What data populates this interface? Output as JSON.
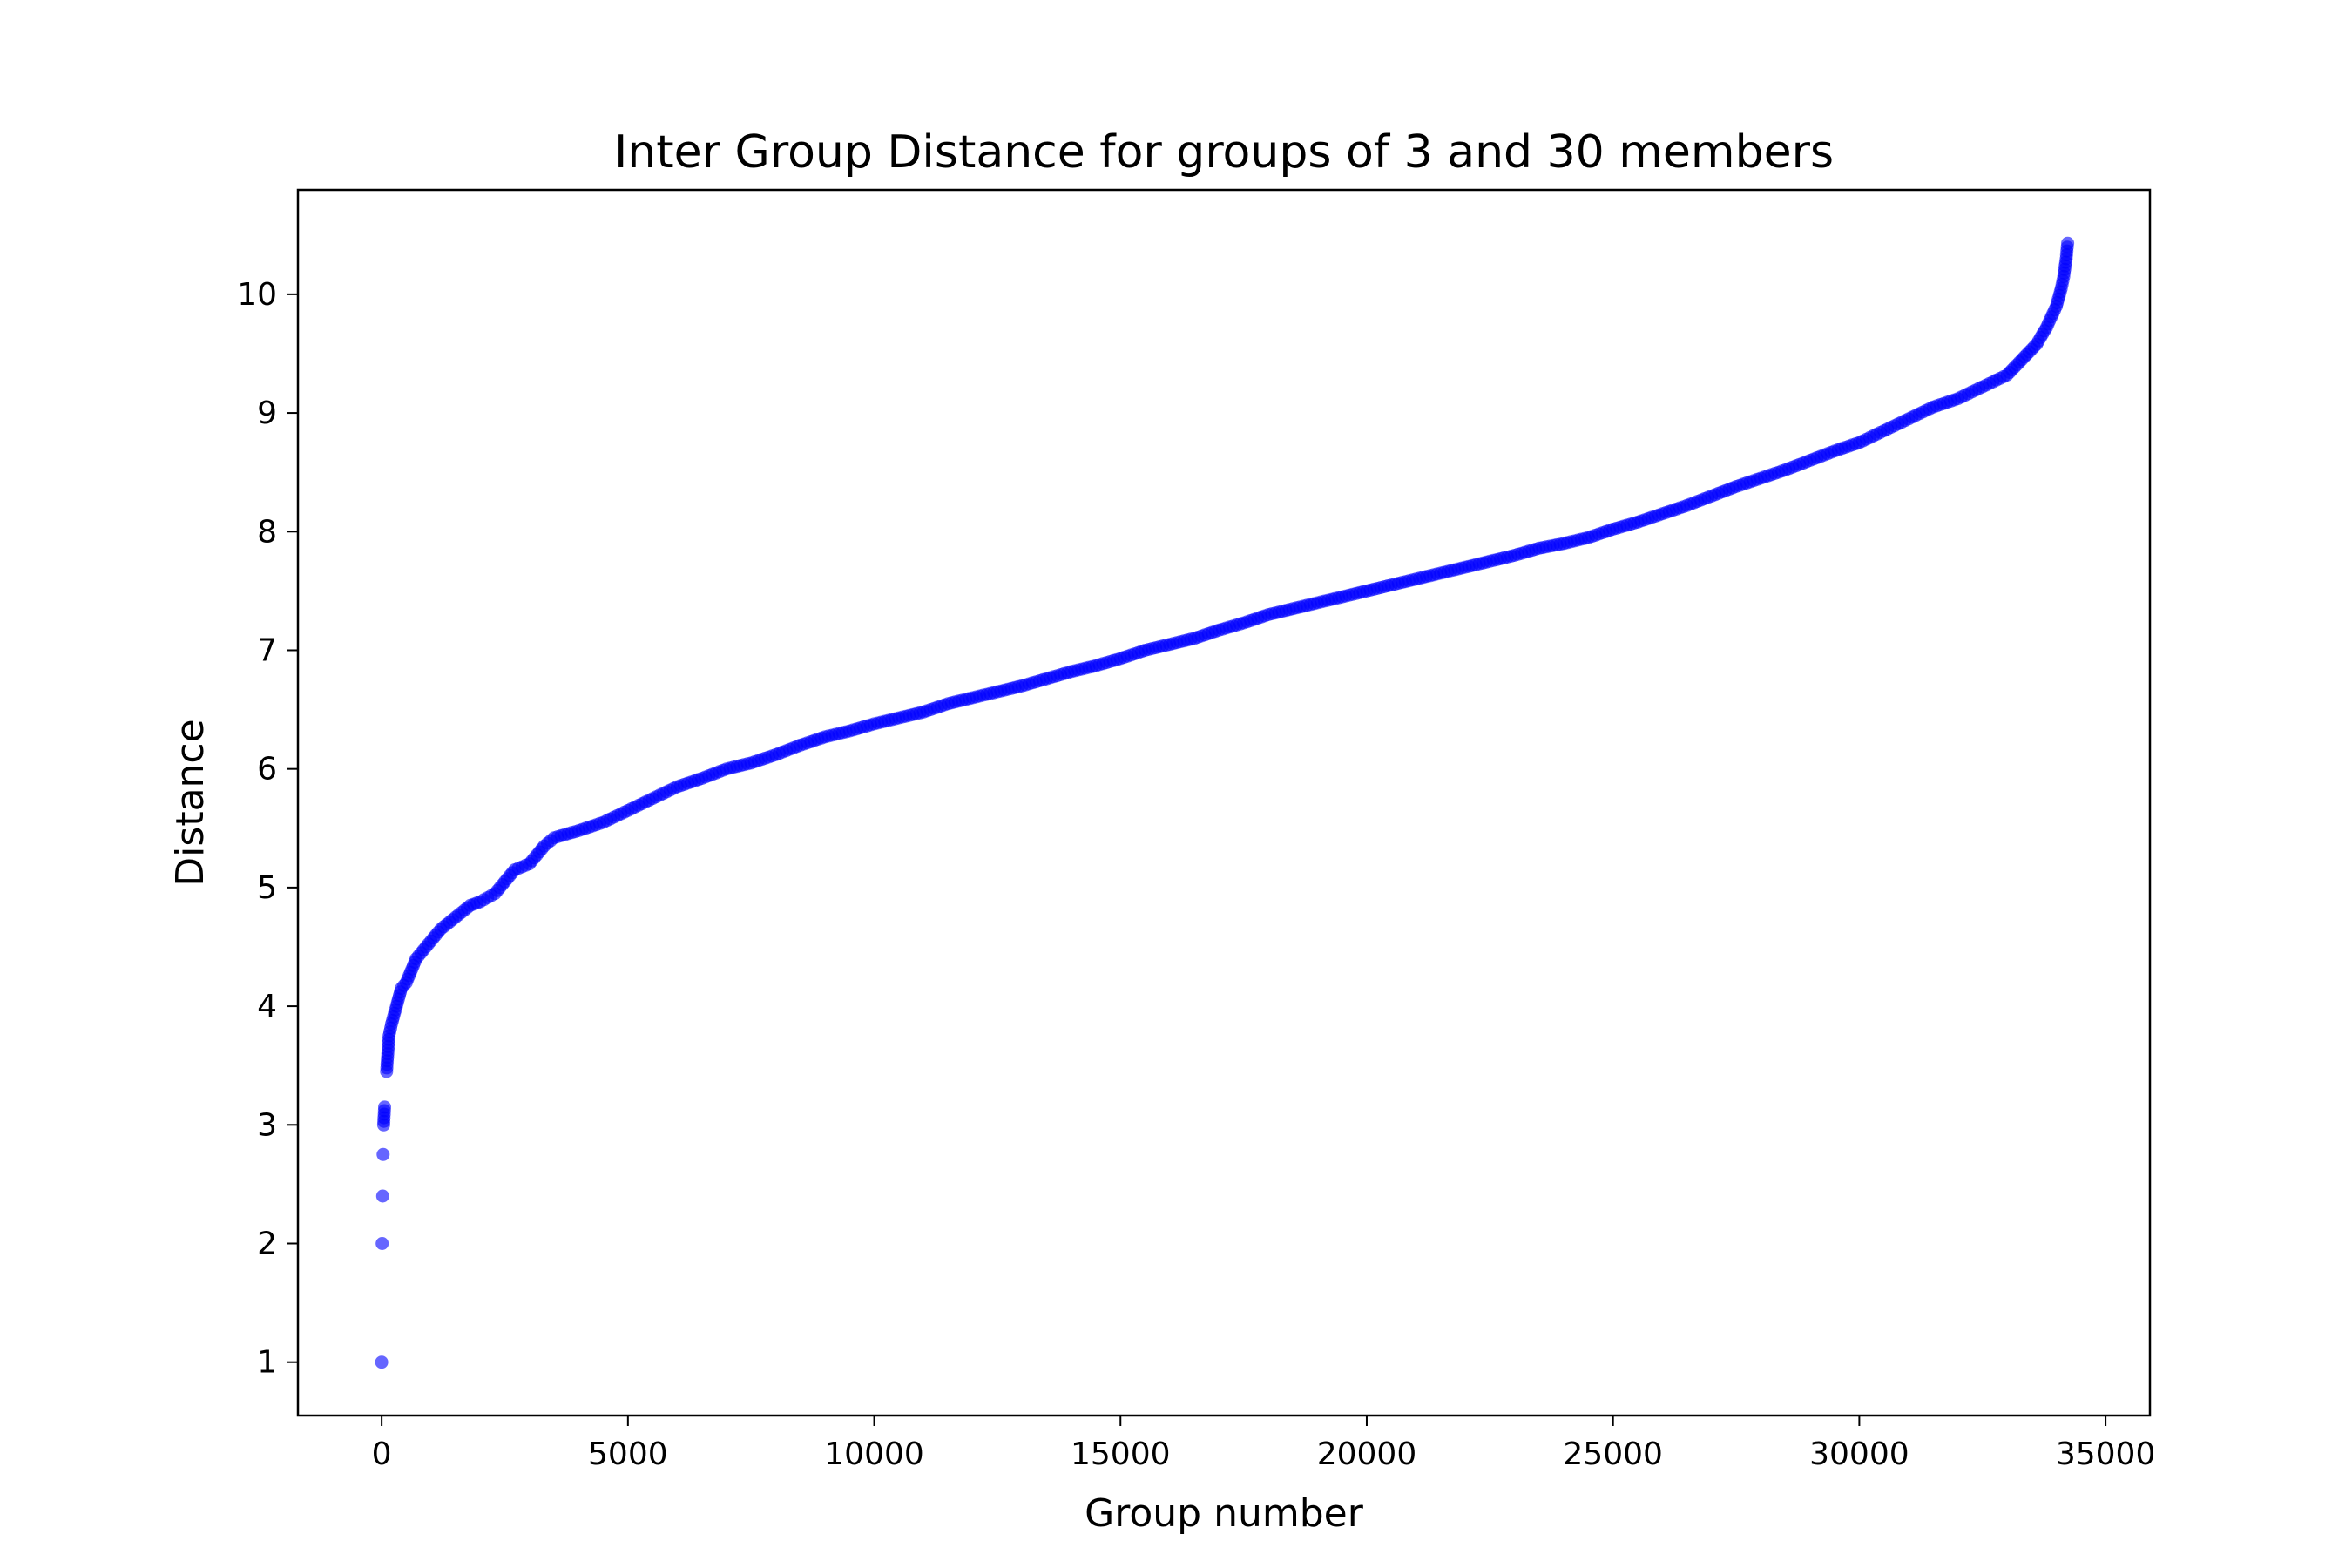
{
  "chart_data": {
    "type": "scatter",
    "title": "Inter Group Distance for groups of 3 and 30 members",
    "xlabel": "Group number",
    "ylabel": "Distance",
    "xlim": [
      -1700,
      35900
    ],
    "ylim": [
      0.55,
      10.88
    ],
    "xticks": [
      0,
      5000,
      10000,
      15000,
      20000,
      25000,
      30000,
      35000
    ],
    "yticks": [
      1,
      2,
      3,
      4,
      5,
      6,
      7,
      8,
      9,
      10
    ],
    "grid": false,
    "marker_color": "#0000ff",
    "series": [
      {
        "x": [
          0,
          10,
          20,
          30,
          40,
          60,
          100,
          150,
          200,
          300,
          400,
          500,
          700,
          800,
          1000,
          1200,
          1500,
          1800,
          2000,
          2300,
          2500,
          2700,
          3000,
          3300,
          3500,
          4000,
          4500,
          5000,
          5500,
          6000,
          6500,
          7000,
          7500,
          8000,
          8500,
          9000,
          9500,
          10000,
          10500,
          11000,
          11500,
          12000,
          12500,
          13000,
          13500,
          14000,
          14500,
          15000,
          15500,
          16000,
          16500,
          17000,
          17500,
          18000,
          18500,
          19000,
          19500,
          20000,
          20500,
          21000,
          21500,
          22000,
          22500,
          23000,
          23500,
          24000,
          24500,
          25000,
          25500,
          26000,
          26500,
          27000,
          27500,
          28000,
          28500,
          29000,
          29500,
          30000,
          30500,
          31000,
          31500,
          32000,
          32500,
          33000,
          33300,
          33600,
          33800,
          34000,
          34100,
          34150,
          34200,
          34230
        ],
        "y": [
          1.0,
          2.0,
          2.4,
          2.75,
          3.0,
          3.15,
          3.45,
          3.75,
          3.85,
          4.0,
          4.15,
          4.2,
          4.4,
          4.45,
          4.55,
          4.65,
          4.75,
          4.85,
          4.88,
          4.95,
          5.05,
          5.15,
          5.2,
          5.35,
          5.42,
          5.48,
          5.55,
          5.65,
          5.75,
          5.85,
          5.92,
          6.0,
          6.05,
          6.12,
          6.2,
          6.27,
          6.32,
          6.38,
          6.43,
          6.48,
          6.55,
          6.6,
          6.65,
          6.7,
          6.76,
          6.82,
          6.87,
          6.93,
          7.0,
          7.05,
          7.1,
          7.17,
          7.23,
          7.3,
          7.35,
          7.4,
          7.45,
          7.5,
          7.55,
          7.6,
          7.65,
          7.7,
          7.75,
          7.8,
          7.86,
          7.9,
          7.95,
          8.02,
          8.08,
          8.15,
          8.22,
          8.3,
          8.38,
          8.45,
          8.52,
          8.6,
          8.68,
          8.75,
          8.85,
          8.95,
          9.05,
          9.12,
          9.22,
          9.32,
          9.45,
          9.58,
          9.72,
          9.9,
          10.05,
          10.15,
          10.3,
          10.43
        ]
      }
    ]
  }
}
